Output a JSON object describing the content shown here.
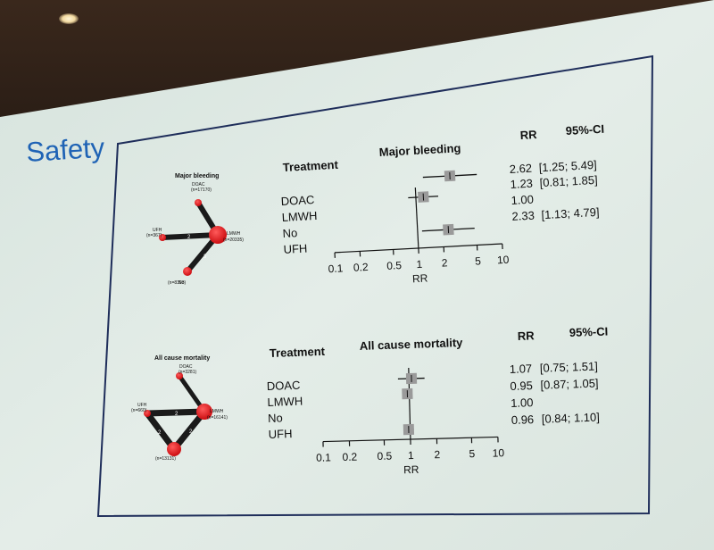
{
  "slide": {
    "title": "Safety",
    "colors": {
      "title": "#1f63b5",
      "screen": "#dfe9e4",
      "text": "#111111",
      "node": "#e0161b",
      "box": "#9a9a9a"
    }
  },
  "panels": [
    {
      "id": "major-bleeding",
      "network": {
        "title": "Major bleeding",
        "nodes": [
          {
            "label": "DOAC",
            "count": "(n=17170)"
          },
          {
            "label": "UFH",
            "count": "(n=367)"
          },
          {
            "label": "LMWH",
            "count": "(n=20335)"
          },
          {
            "label": "No",
            "count": "(n=8393)"
          }
        ],
        "edge_numbers": [
          "2",
          "3"
        ]
      },
      "table": {
        "treatment_header": "Treatment",
        "rr_header": "RR",
        "ci_header": "95%-CI",
        "rows": [
          {
            "treatment": "DOAC",
            "rr": "2.62",
            "ci": "[1.25; 5.49]"
          },
          {
            "treatment": "LMWH",
            "rr": "1.23",
            "ci": "[0.81; 1.85]"
          },
          {
            "treatment": "No",
            "rr": "1.00",
            "ci": ""
          },
          {
            "treatment": "UFH",
            "rr": "2.33",
            "ci": "[1.13; 4.79]"
          }
        ]
      },
      "forest": {
        "title": "Major bleeding",
        "axis_label": "RR",
        "ticks": [
          "0.1",
          "0.2",
          "0.5",
          "1",
          "2",
          "5",
          "10"
        ],
        "estimates": [
          {
            "treatment": "DOAC",
            "rr": 2.62,
            "lo": 1.25,
            "hi": 5.49
          },
          {
            "treatment": "LMWH",
            "rr": 1.23,
            "lo": 0.81,
            "hi": 1.85
          },
          {
            "treatment": "No",
            "rr": 1.0,
            "lo": null,
            "hi": null
          },
          {
            "treatment": "UFH",
            "rr": 2.33,
            "lo": 1.13,
            "hi": 4.79
          }
        ]
      }
    },
    {
      "id": "all-cause-mortality",
      "network": {
        "title": "All cause mortality",
        "nodes": [
          {
            "label": "DOAC",
            "count": "(n=3281)"
          },
          {
            "label": "UFH",
            "count": "(n=660)"
          },
          {
            "label": "LMWH",
            "count": "(n=16141)"
          },
          {
            "label": "",
            "count": "(n=13131)"
          }
        ],
        "edge_numbers": [
          "2",
          "2",
          "2"
        ]
      },
      "table": {
        "treatment_header": "Treatment",
        "rr_header": "RR",
        "ci_header": "95%-CI",
        "rows": [
          {
            "treatment": "DOAC",
            "rr": "1.07",
            "ci": "[0.75; 1.51]"
          },
          {
            "treatment": "LMWH",
            "rr": "0.95",
            "ci": "[0.87; 1.05]"
          },
          {
            "treatment": "No",
            "rr": "1.00",
            "ci": ""
          },
          {
            "treatment": "UFH",
            "rr": "0.96",
            "ci": "[0.84; 1.10]"
          }
        ]
      },
      "forest": {
        "title": "All cause mortality",
        "axis_label": "RR",
        "ticks": [
          "0.1",
          "0.2",
          "0.5",
          "1",
          "2",
          "5",
          "10"
        ],
        "estimates": [
          {
            "treatment": "DOAC",
            "rr": 1.07,
            "lo": 0.75,
            "hi": 1.51
          },
          {
            "treatment": "LMWH",
            "rr": 0.95,
            "lo": 0.87,
            "hi": 1.05
          },
          {
            "treatment": "No",
            "rr": 1.0,
            "lo": null,
            "hi": null
          },
          {
            "treatment": "UFH",
            "rr": 0.96,
            "lo": 0.84,
            "hi": 1.1
          }
        ]
      }
    }
  ]
}
